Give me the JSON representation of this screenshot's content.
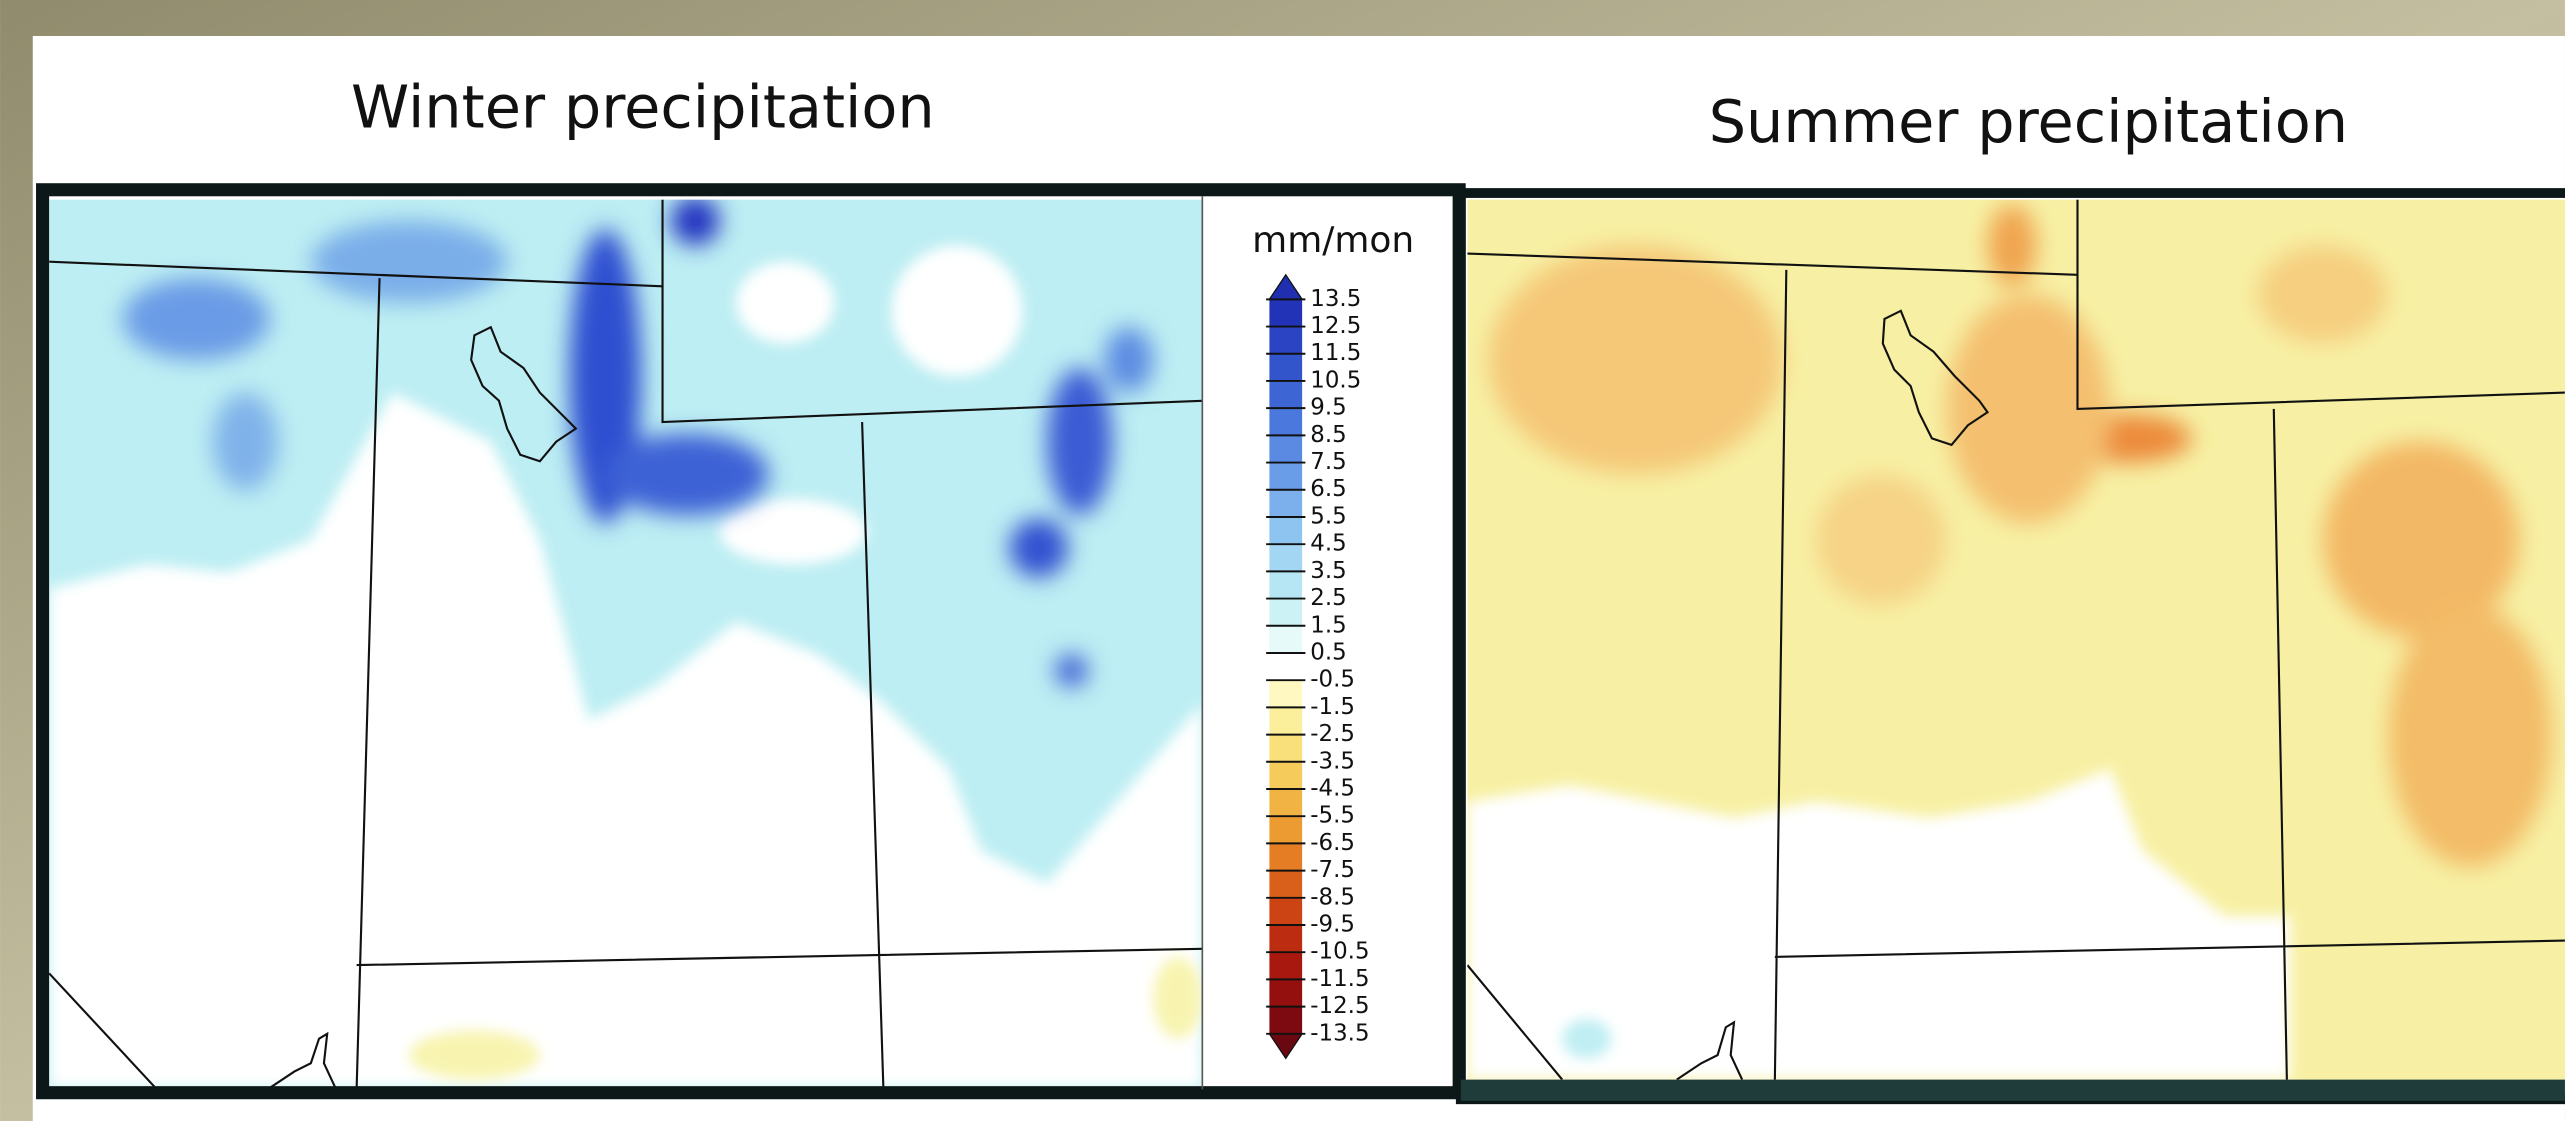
{
  "maps": [
    {
      "title": "Winter precipitation"
    },
    {
      "title": "Summer precipitation"
    }
  ],
  "colorbar": {
    "unit": "mm/mon",
    "ticks": [
      13.5,
      12.5,
      11.5,
      10.5,
      9.5,
      8.5,
      7.5,
      6.5,
      5.5,
      4.5,
      3.5,
      2.5,
      1.5,
      0.5,
      -0.5,
      -1.5,
      -2.5,
      -3.5,
      -4.5,
      -5.5,
      -6.5,
      -7.5,
      -8.5,
      -9.5,
      -10.5,
      -11.5,
      -12.5,
      -13.5
    ],
    "colors": [
      "#1f2fb0",
      "#2233b8",
      "#2a44c4",
      "#3355cc",
      "#3d66d4",
      "#4a78dc",
      "#5a8ae2",
      "#6a9de8",
      "#7cb0ec",
      "#8ec4f0",
      "#a2d6f2",
      "#b6e6f4",
      "#cdf2f6",
      "#e6fafa",
      "#ffffff",
      "#fff8c0",
      "#fcef9c",
      "#f9e07a",
      "#f5cc5c",
      "#f1b444",
      "#ec9a32",
      "#e47d24",
      "#d9601a",
      "#cc4414",
      "#bb2c10",
      "#a8180e",
      "#94100e",
      "#7c0a10",
      "#6a0812"
    ]
  }
}
